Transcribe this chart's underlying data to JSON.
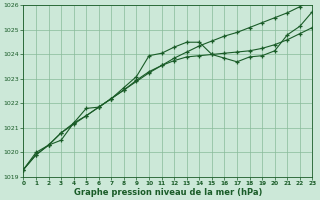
{
  "bg_color": "#cce8d8",
  "grid_color": "#88bb99",
  "line_color": "#1a5c28",
  "xlabel": "Graphe pression niveau de la mer (hPa)",
  "ylim": [
    1019,
    1026
  ],
  "xlim": [
    0,
    23
  ],
  "yticks": [
    1019,
    1020,
    1021,
    1022,
    1023,
    1024,
    1025,
    1026
  ],
  "xticks": [
    0,
    1,
    2,
    3,
    4,
    5,
    6,
    7,
    8,
    9,
    10,
    11,
    12,
    13,
    14,
    15,
    16,
    17,
    18,
    19,
    20,
    21,
    22,
    23
  ],
  "line1": [
    1019.3,
    1020.0,
    1020.3,
    1020.5,
    1021.2,
    1021.8,
    1021.85,
    1022.2,
    1022.65,
    1023.1,
    1023.95,
    1024.05,
    1024.3,
    1024.5,
    1024.5,
    1024.0,
    1023.85,
    1023.7,
    1023.9,
    1023.95,
    1024.15,
    1024.8,
    1025.15,
    1025.75
  ],
  "line2": [
    1019.3,
    1019.9,
    1020.3,
    1020.8,
    1021.2,
    1021.5,
    1021.85,
    1022.2,
    1022.55,
    1022.95,
    1023.3,
    1023.55,
    1023.75,
    1023.9,
    1023.95,
    1024.0,
    1024.05,
    1024.1,
    1024.15,
    1024.25,
    1024.4,
    1024.6,
    1024.85,
    1025.1
  ],
  "line3": [
    1019.3,
    1019.9,
    1020.3,
    1020.8,
    1021.15,
    1021.5,
    1021.85,
    1022.2,
    1022.55,
    1022.9,
    1023.25,
    1023.55,
    1023.85,
    1024.1,
    1024.35,
    1024.55,
    1024.75,
    1024.9,
    1025.1,
    1025.3,
    1025.5,
    1025.7,
    1025.95,
    1026.25
  ]
}
